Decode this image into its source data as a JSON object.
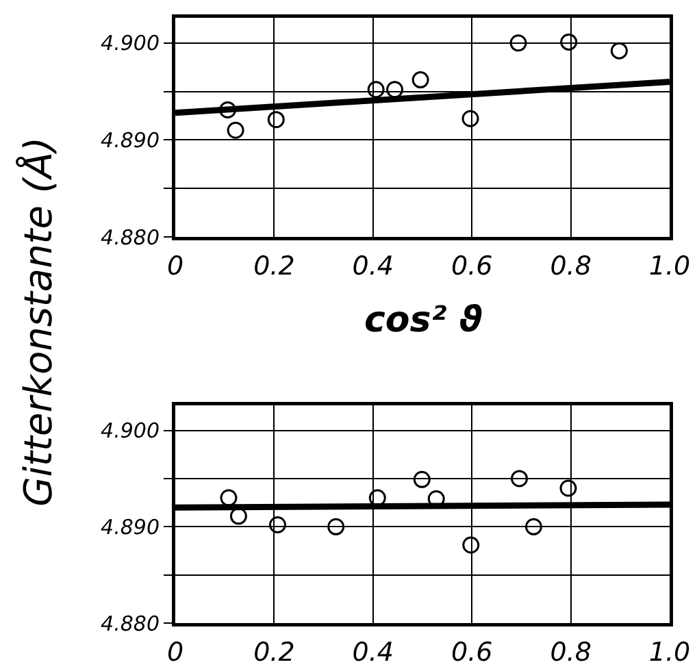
{
  "chart_data": [
    {
      "type": "scatter",
      "ylabel": "Gitterkonstante (Å)",
      "xlabel": "cos² ϑ",
      "marker": "circle",
      "grid": true,
      "xlim": [
        0,
        1
      ],
      "xticks": [
        0,
        0.2,
        0.4,
        0.6,
        0.8,
        {
          "value": 1,
          "label": "1.0"
        }
      ],
      "ylim": [
        4.88,
        4.9026
      ],
      "yticks": [
        {
          "value": 4.88,
          "label": "4.880"
        },
        {
          "value": 4.885,
          "label": null
        },
        {
          "value": 4.89,
          "label": "4.890"
        },
        {
          "value": 4.895,
          "label": null
        },
        {
          "value": 4.9,
          "label": "4.900"
        }
      ],
      "series": [
        {
          "color": "#000000",
          "x": [
            0.106,
            0.122,
            0.204,
            0.406,
            0.444,
            0.496,
            0.597,
            0.694,
            0.796,
            0.898
          ],
          "values": [
            4.8931,
            4.891,
            4.8921,
            4.8952,
            4.8952,
            4.8962,
            4.8922,
            4.9,
            4.9001,
            4.8992
          ]
        },
        {
          "type": "line",
          "color": "#000000",
          "line_style": "solid",
          "marker": "none",
          "x": [
            0,
            1
          ],
          "values": [
            4.8928,
            4.896
          ]
        }
      ]
    },
    {
      "type": "scatter",
      "marker": "circle",
      "grid": true,
      "xlim": [
        0,
        1
      ],
      "xticks": [
        0,
        0.2,
        0.4,
        0.6,
        0.8,
        {
          "value": 1,
          "label": "1.0"
        }
      ],
      "ylim": [
        4.88,
        4.9026
      ],
      "yticks": [
        {
          "value": 4.88,
          "label": "4.880"
        },
        {
          "value": 4.885,
          "label": null
        },
        {
          "value": 4.89,
          "label": "4.890"
        },
        {
          "value": 4.895,
          "label": null
        },
        {
          "value": 4.9,
          "label": "4.900"
        }
      ],
      "series": [
        {
          "color": "#000000",
          "x": [
            0.108,
            0.128,
            0.207,
            0.325,
            0.409,
            0.499,
            0.528,
            0.598,
            0.696,
            0.725,
            0.795
          ],
          "values": [
            4.893,
            4.8911,
            4.8902,
            4.89,
            4.893,
            4.8949,
            4.8929,
            4.8881,
            4.895,
            4.89,
            4.894
          ]
        },
        {
          "type": "line",
          "color": "#000000",
          "line_style": "solid",
          "marker": "none",
          "x": [
            0,
            1
          ],
          "values": [
            4.892,
            4.8923
          ]
        }
      ]
    }
  ]
}
